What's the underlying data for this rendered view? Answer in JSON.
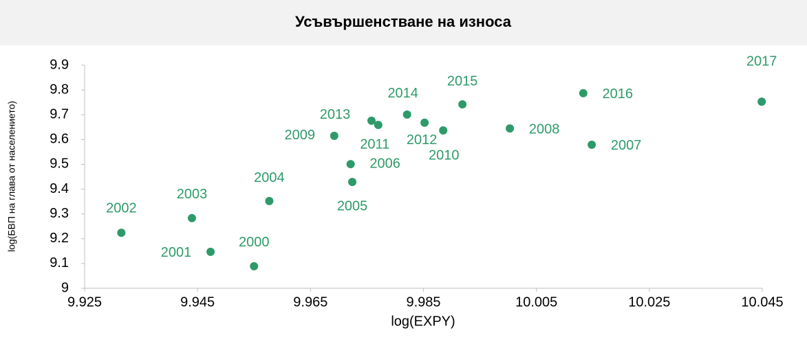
{
  "chart_data": {
    "type": "scatter",
    "title": "Усъвършенстване на износа",
    "xlabel": "log(EXPY)",
    "ylabel": "log(БВП на глава от населението)",
    "labels": [
      "2000",
      "2001",
      "2002",
      "2003",
      "2004",
      "2005",
      "2006",
      "2007",
      "2008",
      "2009",
      "2010",
      "2011",
      "2012",
      "2013",
      "2014",
      "2015",
      "2016",
      "2017"
    ],
    "x": [
      9.955,
      9.9473,
      9.9315,
      9.944,
      9.9577,
      9.9724,
      9.9721,
      10.0148,
      10.0003,
      9.9692,
      9.9885,
      9.977,
      9.9852,
      9.9758,
      9.9821,
      9.9919,
      10.0133,
      10.0449
    ],
    "values": [
      9.089,
      9.147,
      9.224,
      9.283,
      9.352,
      9.429,
      9.501,
      9.579,
      9.645,
      9.615,
      9.637,
      9.659,
      9.668,
      9.676,
      9.701,
      9.742,
      9.787,
      9.753
    ],
    "color": "#2e9a6a",
    "xlim": [
      9.925,
      10.045
    ],
    "xticks": [
      9.925,
      9.945,
      9.965,
      9.985,
      10.005,
      10.025,
      10.045
    ],
    "ylim": [
      9,
      9.9
    ],
    "yticks": [
      9,
      9.1,
      9.2,
      9.3,
      9.4,
      9.5,
      9.6,
      9.7,
      9.8,
      9.9
    ]
  }
}
